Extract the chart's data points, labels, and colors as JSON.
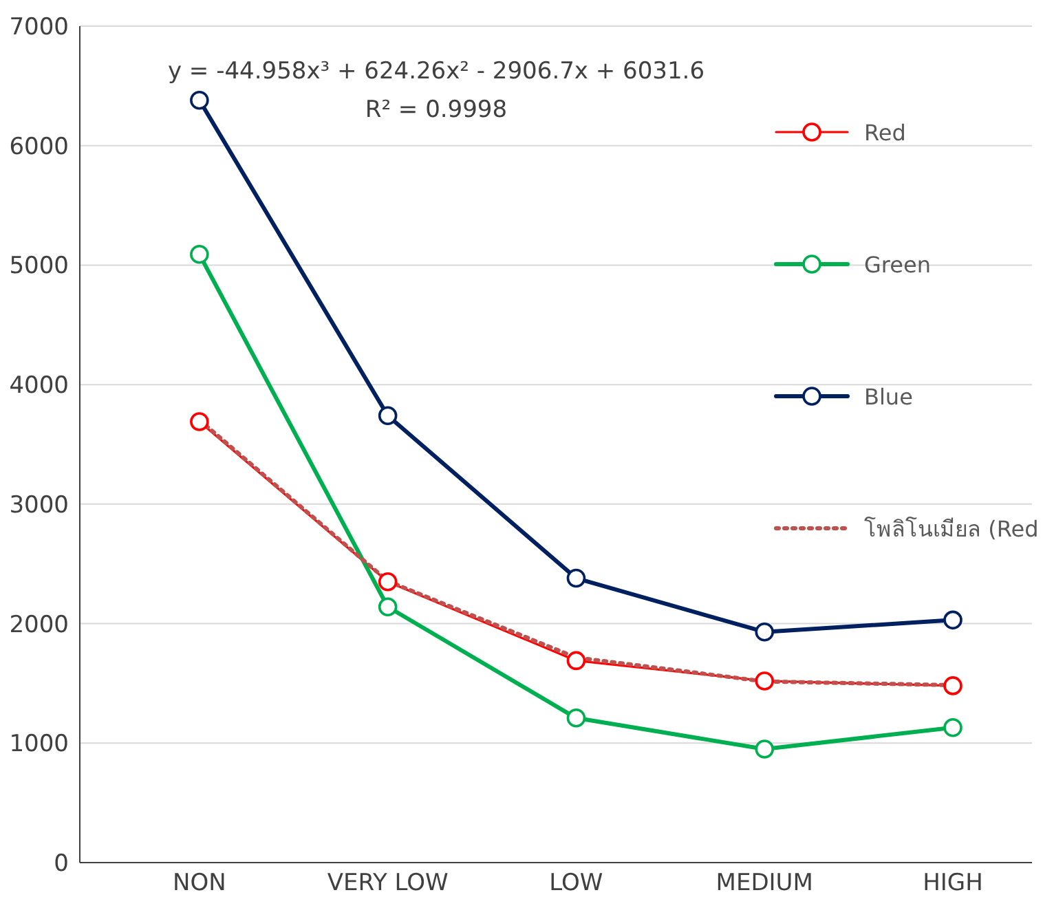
{
  "chart_data": {
    "type": "line",
    "categories": [
      "NON",
      "VERY LOW",
      "LOW",
      "MEDIUM",
      "HIGH"
    ],
    "series": [
      {
        "name": "Red",
        "color": "#ff0000",
        "values": [
          3690,
          2350,
          1690,
          1520,
          1480
        ],
        "marker": "circle"
      },
      {
        "name": "Green",
        "color": "#00b050",
        "values": [
          5090,
          2140,
          1210,
          950,
          1130
        ],
        "marker": "circle"
      },
      {
        "name": "Blue",
        "color": "#002060",
        "values": [
          6380,
          3740,
          2380,
          1930,
          2030
        ],
        "marker": "circle"
      },
      {
        "name": "โพลิโนเมียล (Red",
        "color": "#c0504d",
        "values": [
          3704,
          2356,
          1716,
          1516,
          1485
        ],
        "marker": "none",
        "line_style": "dotted"
      }
    ],
    "ylim": [
      0,
      7000
    ],
    "yticks": [
      0,
      1000,
      2000,
      3000,
      4000,
      5000,
      6000,
      7000
    ],
    "grid": "y",
    "legend": "right",
    "annotations": [
      "y = -44.958x³ + 624.26x² - 2906.7x + 6031.6",
      "R² = 0.9998"
    ]
  }
}
